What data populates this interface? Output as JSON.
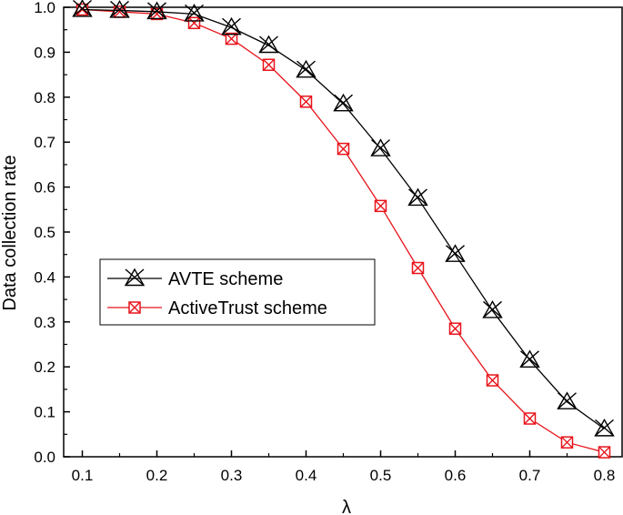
{
  "chart_data": {
    "type": "line",
    "title": "",
    "xlabel": "λ",
    "ylabel": "Data collection rate",
    "xlim": [
      0.075,
      0.825
    ],
    "ylim": [
      0.0,
      1.0
    ],
    "x_ticks": [
      "0.1",
      "0.2",
      "0.3",
      "0.4",
      "0.5",
      "0.6",
      "0.7",
      "0.8"
    ],
    "y_ticks": [
      "0.0",
      "0.1",
      "0.2",
      "0.3",
      "0.4",
      "0.5",
      "0.6",
      "0.7",
      "0.8",
      "0.9",
      "1.0"
    ],
    "x": [
      0.1,
      0.15,
      0.2,
      0.25,
      0.3,
      0.35,
      0.4,
      0.45,
      0.5,
      0.55,
      0.6,
      0.65,
      0.7,
      0.75,
      0.8
    ],
    "series": [
      {
        "name": "AVTE scheme",
        "color": "#000000",
        "marker": "x-triangle",
        "values": [
          0.995,
          0.993,
          0.99,
          0.985,
          0.955,
          0.915,
          0.86,
          0.785,
          0.685,
          0.575,
          0.45,
          0.325,
          0.215,
          0.122,
          0.062
        ]
      },
      {
        "name": "ActiveTrust scheme",
        "color": "#e8141b",
        "marker": "x-square",
        "values": [
          0.995,
          0.99,
          0.985,
          0.965,
          0.93,
          0.872,
          0.79,
          0.685,
          0.558,
          0.42,
          0.285,
          0.17,
          0.085,
          0.032,
          0.01
        ]
      }
    ],
    "legend_position": "middle-left",
    "grid": false
  }
}
